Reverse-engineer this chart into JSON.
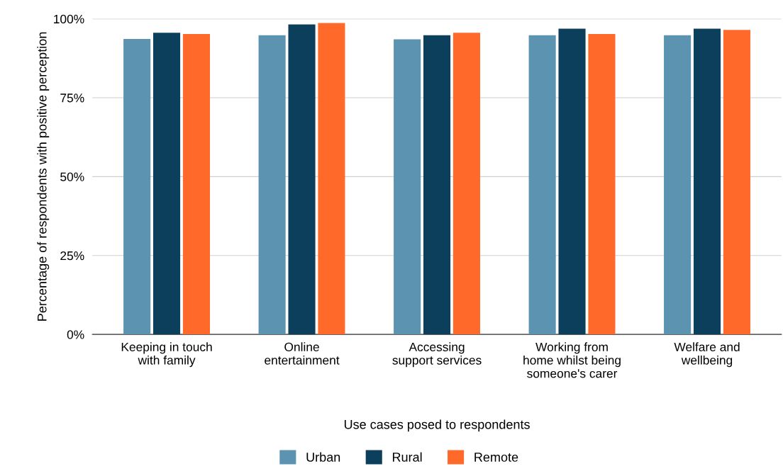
{
  "chart_data": {
    "type": "bar",
    "xlabel": "Use cases posed to respondents",
    "ylabel": "Percentage of respondents with positive perception",
    "categories": [
      "Keeping in touch\nwith family",
      "Online\nentertainment",
      "Accessing\nsupport services",
      "Working from\nhome whilst being\nsomeone's carer",
      "Welfare and\nwellbeing"
    ],
    "series": [
      {
        "name": "Urban",
        "color": "#5b93b0",
        "values": [
          93.6,
          94.8,
          93.5,
          94.8,
          94.8
        ]
      },
      {
        "name": "Rural",
        "color": "#0b3f5c",
        "values": [
          95.6,
          98.2,
          94.8,
          96.9,
          96.9
        ]
      },
      {
        "name": "Remote",
        "color": "#ff6a2b",
        "values": [
          95.2,
          98.7,
          95.6,
          95.2,
          96.5
        ]
      }
    ],
    "ylim": [
      0,
      100
    ],
    "yticks": [
      {
        "value": 0,
        "label": "0%"
      },
      {
        "value": 25,
        "label": "25%"
      },
      {
        "value": 50,
        "label": "50%"
      },
      {
        "value": 75,
        "label": "75%"
      },
      {
        "value": 100,
        "label": "100%"
      }
    ],
    "grid": "y",
    "legend": "bottom"
  }
}
